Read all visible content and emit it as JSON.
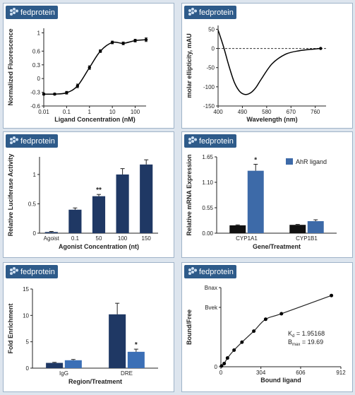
{
  "brand": "fedprotein",
  "chart_data": [
    {
      "type": "line",
      "xscale": "log",
      "x": [
        0.01,
        0.03,
        0.1,
        0.3,
        1,
        3,
        10,
        30,
        100,
        300
      ],
      "values": [
        -0.34,
        -0.34,
        -0.31,
        -0.16,
        0.24,
        0.6,
        0.79,
        0.77,
        0.83,
        0.85
      ],
      "errors": [
        0.02,
        0.02,
        0.03,
        0.04,
        0.04,
        0.03,
        0.03,
        0.03,
        0.03,
        0.04
      ],
      "color": "#000000",
      "markers": true,
      "smooth": true,
      "xlim": [
        0.01,
        300
      ],
      "xticks": [
        0.01,
        0.1,
        1,
        10,
        100
      ],
      "ylim": [
        -0.6,
        1.1
      ],
      "yticks": [
        -0.6,
        -0.3,
        0,
        0.3,
        0.6,
        1
      ],
      "xlabel": "Ligand Concentration (nM)",
      "ylabel": "Normalized Fluorescence"
    },
    {
      "type": "line",
      "x": [
        400,
        420,
        440,
        460,
        480,
        500,
        520,
        540,
        560,
        600,
        650,
        700,
        750,
        780
      ],
      "values": [
        48,
        5,
        -45,
        -88,
        -112,
        -120,
        -116,
        -102,
        -80,
        -40,
        -15,
        -6,
        -2,
        0
      ],
      "color": "#000000",
      "end_marker": true,
      "smooth": true,
      "xlim": [
        400,
        800
      ],
      "xticks": [
        400,
        490,
        580,
        670,
        760
      ],
      "ylim": [
        -150,
        60
      ],
      "yticks": [
        -150,
        -100,
        -50,
        0,
        50
      ],
      "reference_line": {
        "y": 0,
        "style": "dashed"
      },
      "xlabel": "Wavelength (nm)",
      "ylabel": "molar ellipticity, mAU"
    },
    {
      "type": "bar",
      "categories": [
        "Agoist",
        "0.1",
        "50",
        "100",
        "150"
      ],
      "values": [
        0.02,
        0.4,
        0.63,
        1.0,
        1.17
      ],
      "errors": [
        0.01,
        0.03,
        0.03,
        0.1,
        0.08
      ],
      "annotations": [
        null,
        null,
        "**",
        null,
        null
      ],
      "color": "#1f3864",
      "ylim": [
        0,
        1.3
      ],
      "yticks": [
        0,
        0.5,
        1
      ],
      "xlabel": "Agonist Concentration (nt)",
      "ylabel": "Relative Luciferase Activity"
    },
    {
      "type": "bar",
      "categories": [
        "CYP1A1",
        "CYP1B1"
      ],
      "series": [
        {
          "color": "#111111",
          "values": [
            0.17,
            0.18
          ],
          "errors": [
            0.01,
            0.01
          ]
        },
        {
          "name": "AhR ligand",
          "color": "#3d6aa8",
          "values": [
            1.35,
            0.26
          ],
          "errors": [
            0.14,
            0.03
          ],
          "annotations": [
            "*",
            null
          ]
        }
      ],
      "legend": "top-right",
      "ylim": [
        0,
        1.65
      ],
      "yticks": [
        {
          "value": 0,
          "label": "0.00"
        },
        0.55,
        {
          "value": 1.1,
          "label": "1.10"
        },
        1.65
      ],
      "xlabel": "Gene/Treatment",
      "ylabel": "Relative mRNA Expression"
    },
    {
      "type": "bar",
      "categories": [
        "IgG",
        "DRE"
      ],
      "series": [
        {
          "color": "#1f3864",
          "values": [
            1.0,
            10.2
          ],
          "errors": [
            0.1,
            2.1
          ]
        },
        {
          "color": "#3b6fb6",
          "values": [
            1.5,
            3.1
          ],
          "errors": [
            0.15,
            0.5
          ],
          "annotations": [
            null,
            "*"
          ]
        }
      ],
      "ylim": [
        0,
        15
      ],
      "yticks": [
        0,
        5,
        10,
        15
      ],
      "xlabel": "Region/Treatment",
      "ylabel": "Fold Enrichment"
    },
    {
      "type": "scatter",
      "x": [
        5,
        25,
        50,
        100,
        160,
        250,
        340,
        460,
        840
      ],
      "values": [
        0.01,
        0.04,
        0.11,
        0.21,
        0.31,
        0.45,
        0.6,
        0.67,
        0.9
      ],
      "color": "#000000",
      "fit_line": true,
      "xlim": [
        0,
        912
      ],
      "xticks": [
        0,
        304,
        606,
        912
      ],
      "ylim": [
        0,
        1
      ],
      "yticks": [
        0,
        {
          "value": 0.75,
          "label": "Bvek"
        },
        {
          "value": 1,
          "label": "Bnax"
        }
      ],
      "annotations": [
        {
          "symbol": "K",
          "subscript": "d",
          "text": " = 1.95168"
        },
        {
          "symbol": "B",
          "subscript": "max",
          "text": " = 19.69"
        }
      ],
      "xlabel": "Bound ligand",
      "ylabel": "Bound/Free"
    }
  ]
}
